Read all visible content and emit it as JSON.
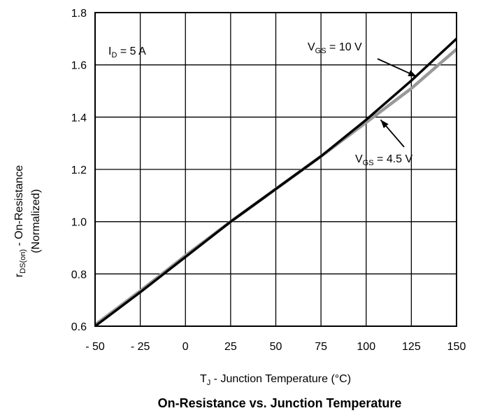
{
  "chart_data": {
    "type": "line",
    "title": "On-Resistance vs. Junction Temperature",
    "xlabel": {
      "main": "T",
      "sub": "J",
      "rest": " - Junction Temperature (°C)"
    },
    "ylabel": {
      "main": "r",
      "sub": "DS(on)",
      "rest": " - On-Resistance",
      "line2": "(Normalized)"
    },
    "xlim": [
      -50,
      150
    ],
    "ylim": [
      0.6,
      1.8
    ],
    "grid": true,
    "x_ticks": [
      -50,
      -25,
      0,
      25,
      50,
      75,
      100,
      125,
      150
    ],
    "x_tick_labels": [
      "- 50",
      "- 25",
      "0",
      "25",
      "50",
      "75",
      "100",
      "125",
      "150"
    ],
    "y_ticks": [
      0.6,
      0.8,
      1.0,
      1.2,
      1.4,
      1.6,
      1.8
    ],
    "y_tick_labels": [
      "0.6",
      "0.8",
      "1.0",
      "1.2",
      "1.4",
      "1.6",
      "1.8"
    ],
    "condition": {
      "main": "I",
      "sub": "D",
      "rest": " = 5 A"
    },
    "series": [
      {
        "name": "V_GS = 10 V",
        "color": "#000000",
        "x": [
          -50,
          -25,
          0,
          25,
          50,
          75,
          100,
          125,
          150
        ],
        "y": [
          0.6,
          0.73,
          0.865,
          1.0,
          1.125,
          1.25,
          1.39,
          1.54,
          1.7
        ]
      },
      {
        "name": "V_GS = 4.5 V",
        "color": "#999999",
        "x": [
          -50,
          -25,
          0,
          25,
          50,
          75,
          100,
          125,
          150
        ],
        "y": [
          0.605,
          0.735,
          0.87,
          1.0,
          1.125,
          1.25,
          1.38,
          1.51,
          1.66
        ]
      }
    ],
    "annotations": [
      {
        "main": "V",
        "sub": "GS",
        "rest": " = 10 V",
        "target_x": 128,
        "target_y": 1.555
      },
      {
        "main": "V",
        "sub": "GS",
        "rest": " = 4.5 V",
        "target_x": 108,
        "target_y": 1.39
      }
    ]
  }
}
